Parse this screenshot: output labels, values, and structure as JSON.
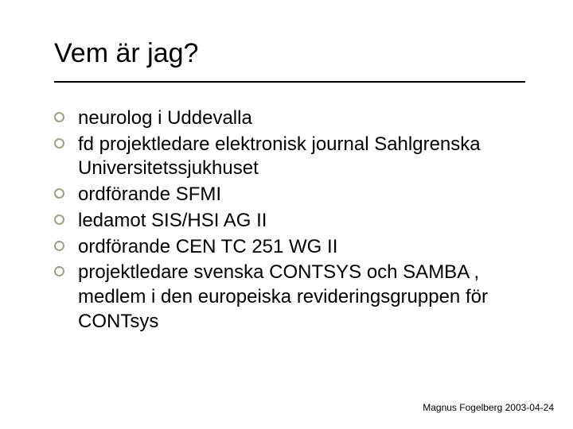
{
  "slide": {
    "title": "Vem är jag?",
    "title_fontsize": 34,
    "title_color": "#000000",
    "rule_color": "#000000",
    "background_color": "#ffffff",
    "bullet_ring_color": "#9aa28a",
    "body_fontsize": 24,
    "body_color": "#000000",
    "items": [
      "neurolog i Uddevalla",
      "fd projektledare elektronisk journal Sahlgrenska Universitetssjukhuset",
      "ordförande SFMI",
      "ledamot SIS/HSI AG II",
      "ordförande CEN TC 251 WG II",
      "projektledare svenska CONTSYS och SAMBA , medlem i den europeiska revideringsgruppen för CONTsys"
    ],
    "footer": "Magnus Fogelberg 2003-04-24",
    "footer_fontsize": 12
  }
}
